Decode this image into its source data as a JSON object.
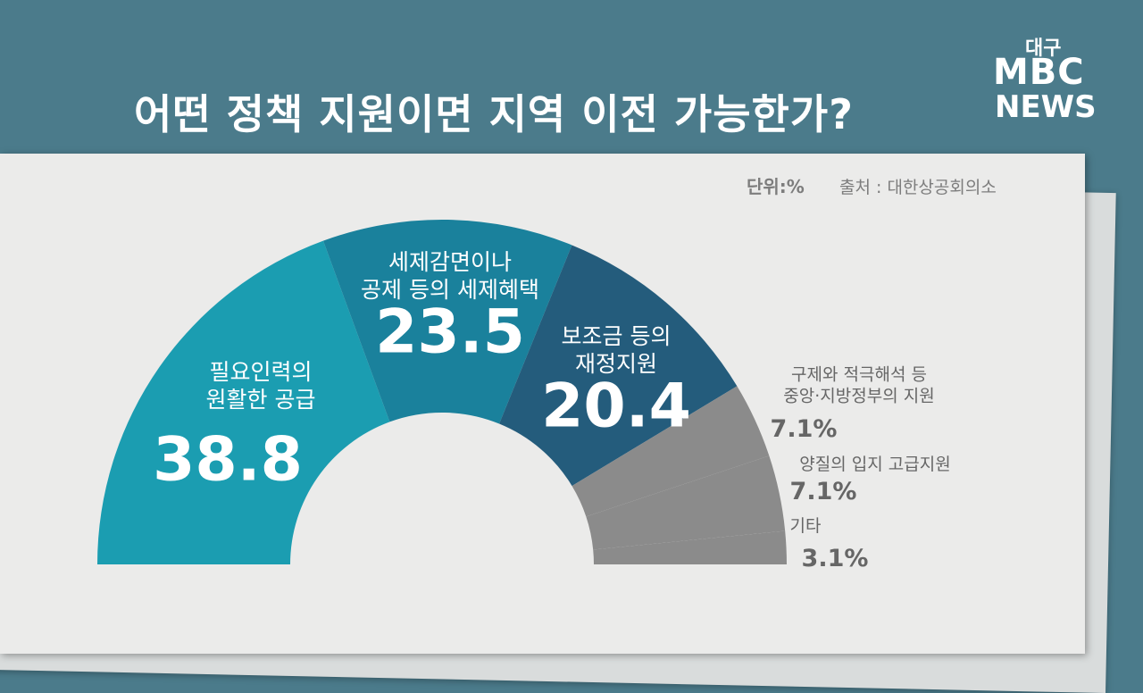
{
  "chart_data": {
    "type": "half-donut",
    "title": "어떤 정책 지원이면 지역 이전 가능한가?",
    "unit": "단위:%",
    "source": "출처 : 대한상공회의소",
    "logo": {
      "region": "대구",
      "brand": "MBC",
      "news": "NEWS"
    },
    "categories": [
      "필요인력의\n원활한 공급",
      "세제감면이나\n공제 등의 세제혜택",
      "보조금 등의\n재정지원",
      "구제와 적극해석 등\n중앙·지방정부의 지원",
      "양질의 입지 고급지원",
      "기타"
    ],
    "values": [
      38.8,
      23.5,
      20.4,
      7.1,
      7.1,
      3.1
    ],
    "value_labels": [
      "38.8",
      "23.5",
      "20.4",
      "7.1%",
      "7.1%",
      "3.1%"
    ],
    "colors": [
      "#1b9db1",
      "#1a819c",
      "#245c7c",
      "#8b8b8b",
      "#8b8b8b",
      "#8b8b8b"
    ]
  }
}
